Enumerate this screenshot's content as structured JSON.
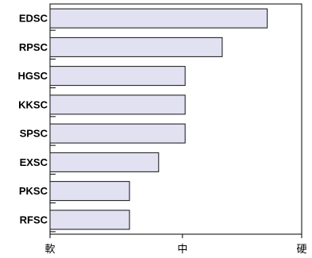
{
  "chart_data": {
    "type": "bar",
    "orientation": "horizontal",
    "categories": [
      "EDSC",
      "RPSC",
      "HGSC",
      "KKSC",
      "SPSC",
      "EXSC",
      "PKSC",
      "RFSC"
    ],
    "values": [
      82,
      65,
      51,
      51,
      51,
      41,
      30,
      30
    ],
    "xlim": [
      0,
      95
    ],
    "x_ticks": [
      {
        "value": 0,
        "label": "軟"
      },
      {
        "value": 50,
        "label": "中"
      },
      {
        "value": 95,
        "label": "硬"
      }
    ],
    "colors": {
      "bar_fill": "#e2e1f2",
      "bar_stroke": "#111111"
    },
    "grid": false,
    "legend": "none"
  }
}
